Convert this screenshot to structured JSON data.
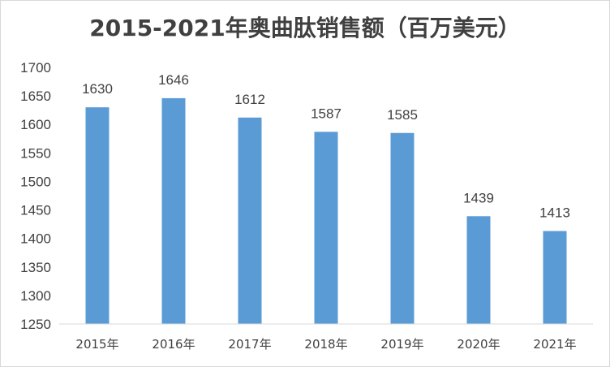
{
  "chart_data": {
    "type": "bar",
    "title": "2015-2021年奥曲肽销售额（百万美元）",
    "xlabel": "",
    "ylabel": "",
    "categories": [
      "2015年",
      "2016年",
      "2017年",
      "2018年",
      "2019年",
      "2020年",
      "2021年"
    ],
    "values": [
      1630,
      1646,
      1612,
      1587,
      1585,
      1439,
      1413
    ],
    "ylim": [
      1250,
      1700
    ],
    "yticks": [
      1250,
      1300,
      1350,
      1400,
      1450,
      1500,
      1550,
      1600,
      1650,
      1700
    ],
    "grid": false,
    "legend": "none",
    "bar_color": "#5b9bd5",
    "data_labels": true
  }
}
